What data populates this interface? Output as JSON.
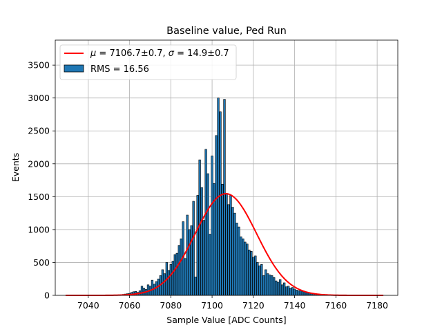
{
  "chart_data": {
    "type": "bar",
    "title": "Baseline value, Ped Run",
    "xlabel": "Sample Value [ADC Counts]",
    "ylabel": "Events",
    "xlim": [
      7024,
      7190
    ],
    "ylim": [
      0,
      3880
    ],
    "xticks": [
      7040,
      7060,
      7080,
      7100,
      7120,
      7140,
      7160,
      7180
    ],
    "yticks": [
      0,
      500,
      1000,
      1500,
      2000,
      2500,
      3000,
      3500
    ],
    "grid": true,
    "legend_position": "top-left",
    "histogram": {
      "name": "RMS = 16.56",
      "color": "#1f77b4",
      "bin_width": 0.9,
      "x": [
        7054,
        7055,
        7056,
        7057,
        7058,
        7059,
        7060,
        7061,
        7062,
        7063,
        7064,
        7065,
        7066,
        7067,
        7068,
        7069,
        7070,
        7071,
        7072,
        7073,
        7074,
        7075,
        7076,
        7077,
        7078,
        7079,
        7080,
        7081,
        7082,
        7083,
        7084,
        7085,
        7086,
        7087,
        7088,
        7089,
        7090,
        7091,
        7092,
        7093,
        7094,
        7095,
        7096,
        7097,
        7098,
        7099,
        7100,
        7101,
        7102,
        7103,
        7104,
        7105,
        7106,
        7107,
        7108,
        7109,
        7110,
        7111,
        7112,
        7113,
        7114,
        7115,
        7116,
        7117,
        7118,
        7119,
        7120,
        7121,
        7122,
        7123,
        7124,
        7125,
        7126,
        7127,
        7128,
        7129,
        7130,
        7131,
        7132,
        7133,
        7134,
        7135,
        7136,
        7137,
        7138,
        7139,
        7140,
        7141,
        7142,
        7143,
        7144,
        7145,
        7146,
        7147,
        7148,
        7149,
        7150,
        7151,
        7152,
        7153,
        7154,
        7155,
        7156,
        7157,
        7158,
        7159,
        7160,
        7161,
        7162
      ],
      "values": [
        5,
        8,
        10,
        15,
        20,
        25,
        30,
        45,
        55,
        60,
        45,
        70,
        140,
        110,
        90,
        160,
        140,
        230,
        170,
        210,
        250,
        300,
        390,
        330,
        500,
        380,
        470,
        520,
        620,
        640,
        760,
        860,
        1120,
        560,
        1220,
        1000,
        1060,
        1430,
        280,
        1520,
        2060,
        1640,
        1140,
        2220,
        1850,
        930,
        2120,
        1700,
        2430,
        3000,
        2790,
        1690,
        2980,
        1550,
        1380,
        1520,
        1340,
        1250,
        1100,
        1040,
        890,
        860,
        810,
        780,
        690,
        670,
        580,
        600,
        500,
        450,
        470,
        300,
        390,
        330,
        310,
        300,
        270,
        220,
        200,
        240,
        160,
        190,
        130,
        140,
        110,
        120,
        95,
        80,
        70,
        75,
        60,
        55,
        45,
        40,
        35,
        30,
        25,
        20,
        18,
        15,
        12,
        10,
        8,
        6,
        5,
        4,
        3,
        2,
        1
      ]
    },
    "series": [
      {
        "name": "$\\mu = 7106.7{\\pm}0.7$, $\\sigma = 14.9{\\pm}0.7$",
        "type": "line",
        "color": "#ff0000",
        "fit": "gaussian",
        "amplitude": 1545,
        "mean": 7106.7,
        "sigma": 14.9,
        "x_range": [
          7029,
          7183
        ]
      }
    ]
  },
  "legend": {
    "entries": [
      {
        "mu_symbol": "μ",
        "eq1": " = 7106.7±0.7, ",
        "sigma_symbol": "σ",
        "eq2": " = 14.9±0.7"
      },
      {
        "label": "RMS = 16.56"
      }
    ]
  }
}
